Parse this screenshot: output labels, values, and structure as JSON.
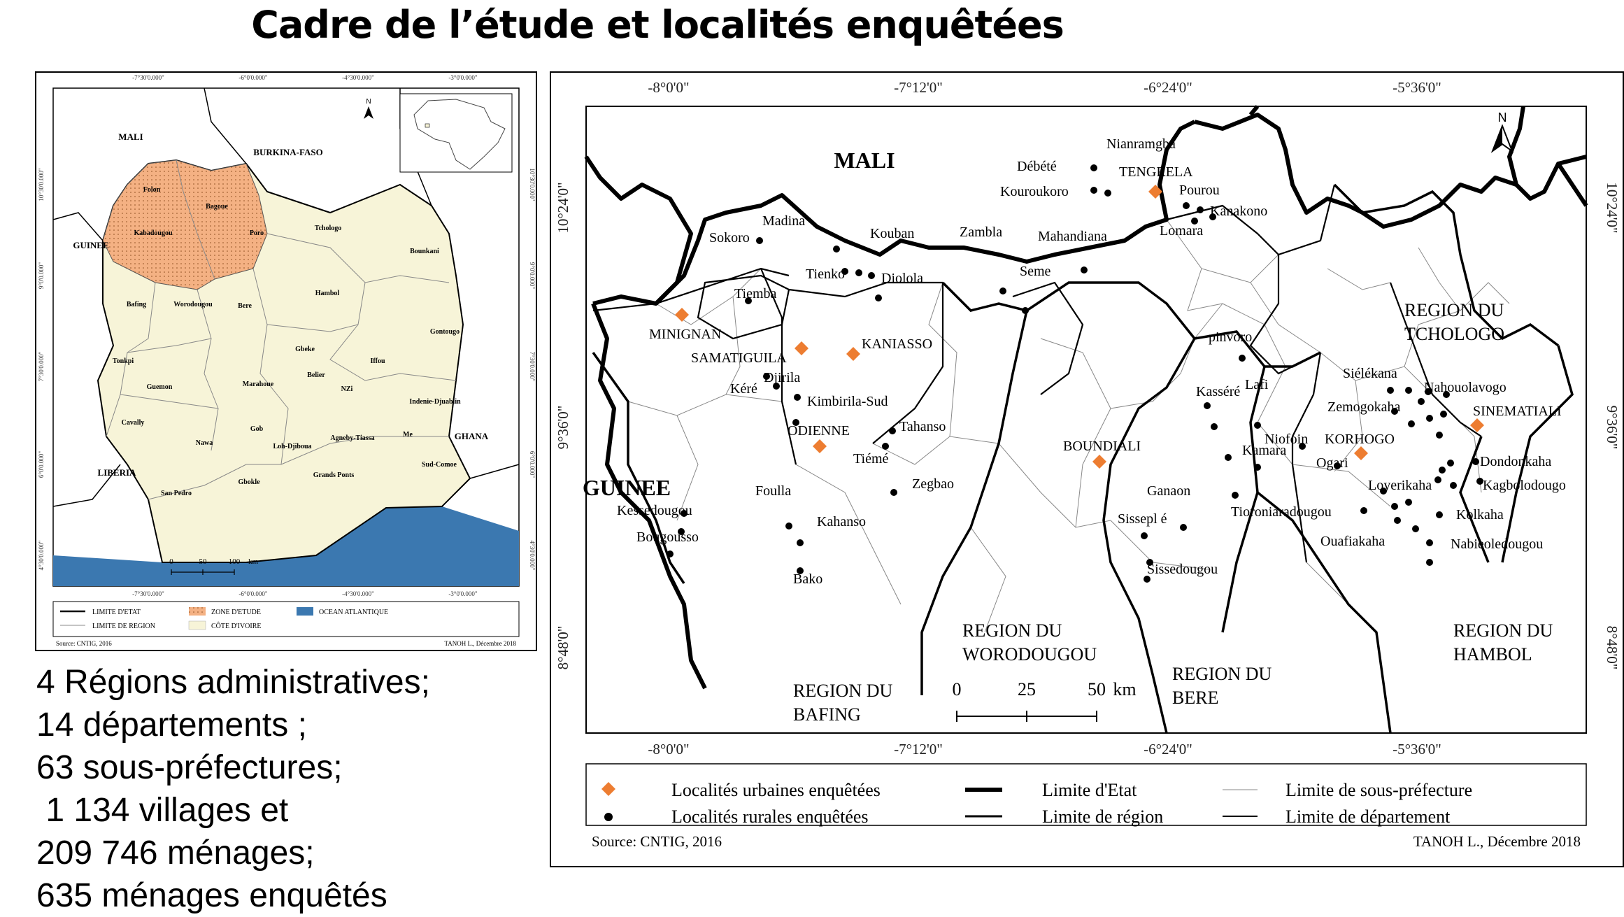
{
  "title": "Cadre de l’étude et localités enquêtées",
  "stats": [
    "4 Régions administratives;",
    "14 départements ;",
    "63 sous-préfectures;",
    " 1 134 villages et",
    "209 746 ménages;",
    "635 ménages enquêtés"
  ],
  "small_map": {
    "top_ticks": [
      "-7°30'0.000\"",
      "-6°0'0.000\"",
      "-4°30'0.000\"",
      "-3°0'0.000\""
    ],
    "bottom_ticks": [
      "-7°30'0.000\"",
      "-6°0'0.000\"",
      "-4°30'0.000\"",
      "-3°0'0.000\""
    ],
    "left_ticks": [
      "10°30'0.000\"",
      "9°0'0.000\"",
      "7°30'0.000\"",
      "6°0'0.000\"",
      "4°30'0.000\""
    ],
    "right_ticks": [
      "10°30'0.000\"",
      "9°0'0.000\"",
      "7°30'0.000\"",
      "6°0'0.000\"",
      "4°30'0.000\""
    ],
    "countries": [
      "MALI",
      "BURKINA-FASO",
      "GUINEE",
      "LIBERIA",
      "GHANA"
    ],
    "regions": [
      "Folon",
      "Bagoue",
      "Kabadougou",
      "Poro",
      "Tchologo",
      "Bounkani",
      "Bafing",
      "Worodougou",
      "Bere",
      "Hambol",
      "Gontougo",
      "Gbeke",
      "Tonkpi",
      "Iffou",
      "Belier",
      "Marahoue",
      "Guemon",
      "NZi",
      "Indenie-Djuablin",
      "Cavally",
      "Gob",
      "Nawa",
      "Agneby-Tiassa",
      "Me",
      "Loh-Djiboua",
      "Sud-Comoe",
      "Grands Ponts",
      "Gbokle",
      "San Pedro"
    ],
    "scale": [
      "0",
      "50",
      "100",
      "km"
    ],
    "legend": {
      "limite_etat": "LIMITE D'ETAT",
      "limite_region": "LIMITE DE REGION",
      "zone_etude": "ZONE D'ETUDE",
      "cote_ivoire": "CÔTE D'IVOIRE",
      "ocean": "OCEAN ATLANTIQUE"
    },
    "source": "Source: CNTIG, 2016",
    "author": "TANOH L., Décembre 2018",
    "colors": {
      "study_zone": "#f4b183",
      "country": "#f7f4d8",
      "ocean": "#3b78b0"
    }
  },
  "big_map": {
    "top_ticks": [
      "-8°0'0\"",
      "-7°12'0\"",
      "-6°24'0\"",
      "-5°36'0\""
    ],
    "bottom_ticks": [
      "-8°0'0\"",
      "-7°12'0\"",
      "-6°24'0\"",
      "-5°36'0\""
    ],
    "left_ticks": [
      "10°24'0\"",
      "9°36'0\"",
      "8°48'0\""
    ],
    "right_ticks": [
      "10°24'0\"",
      "9°36'0\"",
      "8°48'0\""
    ],
    "countries": [
      "MALI",
      "GUINEE"
    ],
    "regions": [
      "REGION DU",
      "TCHOLOGO",
      "REGION DU",
      "WORODOUGOU",
      "REGION DU",
      "BERE",
      "REGION DU",
      "HAMBOL",
      "REGION DU",
      "BAFING"
    ],
    "urban": [
      "TENGRELA",
      "MINIGNAN",
      "SAMATIGUILA",
      "KANIASSO",
      "ODIENNE",
      "BOUNDIALI",
      "KORHOGO",
      "SINEMATIALI"
    ],
    "rural": [
      "Nianramgba",
      "Débété",
      "Kouroukoro",
      "Pourou",
      "Kanakono",
      "Lomara",
      "Madina",
      "Sokoro",
      "Kouban",
      "Zambla",
      "Mahandiana",
      "Tienko",
      "Diolola",
      "Seme",
      "Tiemba",
      "pinvoro",
      "Djirila",
      "Kéré",
      "Kimbirila-Sud",
      "Tahanso",
      "Kasséré",
      "Lafi",
      "Siélékana",
      "Nahouolavogo",
      "Zemogokaha",
      "Tiémé",
      "Niofoin",
      "Kamara",
      "Ogari",
      "Dondonkaha",
      "Zegbao",
      "Foulla",
      "Kessedougou",
      "Ganaon",
      "Loyerikaha",
      "Kagbolodougo",
      "Kahanso",
      "Sissepl é",
      "Tioroniaradougou",
      "Kolkaha",
      "Bougousso",
      "Ouafiakaha",
      "Nabieoledougou",
      "Sissedougou",
      "Bako"
    ],
    "scale": [
      "0",
      "25",
      "50",
      "km"
    ],
    "legend": {
      "urban": "Localités urbaines enquêtées",
      "rural": "Localités rurales enquêtées",
      "etat": "Limite d'Etat",
      "region": "Limite de région",
      "sous_pref": "Limite de sous-préfecture",
      "departement": "Limite de département"
    },
    "source": "Source: CNTIG, 2016",
    "author": "TANOH L., Décembre 2018",
    "colors": {
      "urban_marker": "#ed7d31",
      "rural_marker": "#000000"
    }
  }
}
